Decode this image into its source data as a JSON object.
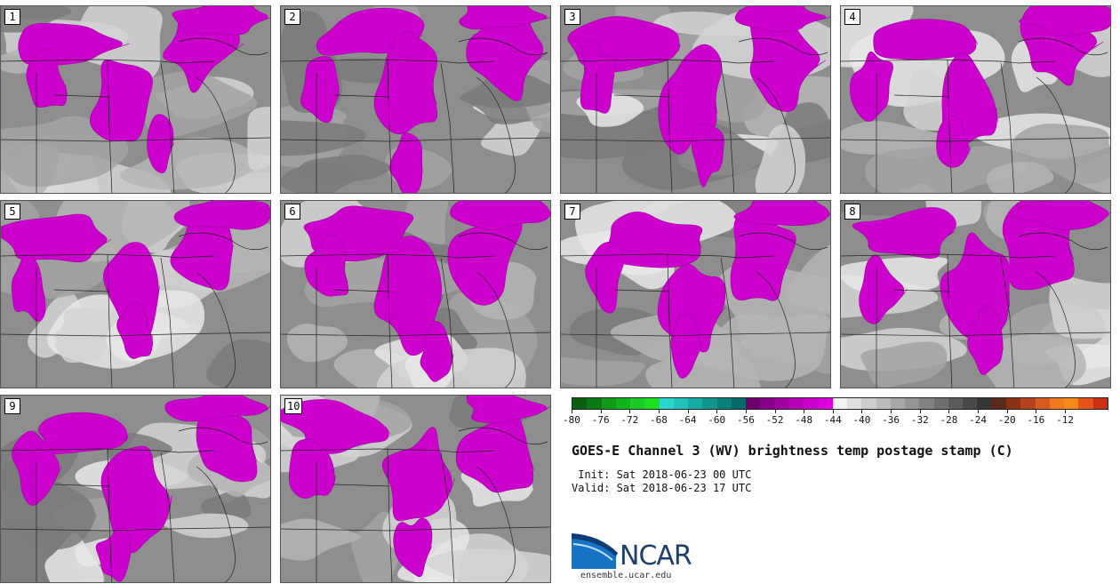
{
  "title": "GOES-E Channel 3 (WV) brightness temp postage stamp (C)",
  "init_text": " Init: Sat 2018-06-23 00 UTC",
  "valid_text": "Valid: Sat 2018-06-23 17 UTC",
  "members": [
    "1",
    "2",
    "3",
    "4",
    "5",
    "6",
    "7",
    "8",
    "9",
    "10"
  ],
  "colorbar": {
    "ticks": [
      "-80",
      "-76",
      "-72",
      "-68",
      "-64",
      "-60",
      "-56",
      "-52",
      "-48",
      "-44",
      "-40",
      "-36",
      "-32",
      "-28",
      "-24",
      "-20",
      "-16",
      "-12"
    ],
    "colors": [
      "#0b5e12",
      "#0c7a14",
      "#0f9a18",
      "#12b41c",
      "#18cc22",
      "#1ae01e",
      "#27d6cf",
      "#20c2ba",
      "#18aaa4",
      "#10958f",
      "#0a7f7a",
      "#066a66",
      "#6a006a",
      "#880088",
      "#a000a0",
      "#b800b8",
      "#cc00cc",
      "#dd00dd",
      "#f2f2f2",
      "#e0e0e0",
      "#cdcdcd",
      "#bbbbbb",
      "#a8a8a8",
      "#959595",
      "#828282",
      "#6f6f6f",
      "#5c5c5c",
      "#494949",
      "#363636",
      "#5a2a1c",
      "#8a3216",
      "#b4421a",
      "#d85a1e",
      "#ee7a1c",
      "#f58a1a",
      "#e45418",
      "#cc3014"
    ]
  },
  "logo": {
    "name": "NCAR",
    "url": "ensemble.ucar.edu"
  }
}
